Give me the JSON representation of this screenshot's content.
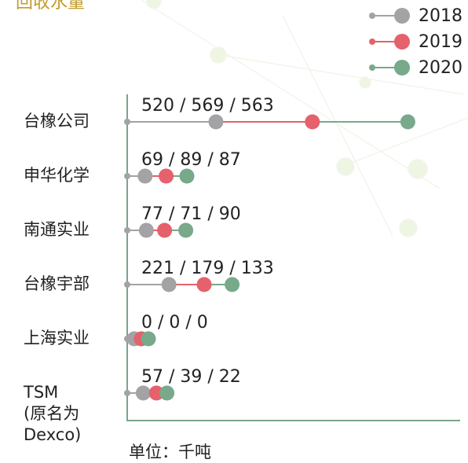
{
  "chart_data": {
    "type": "lollipop",
    "title": "回收水量",
    "categories": [
      "台橡公司",
      "申华化学",
      "南通实业",
      "台橡宇部",
      "上海实业",
      "TSM (原名为 Dexco)"
    ],
    "series": [
      {
        "name": "2018",
        "color": "#a3a3a5",
        "values": [
          520,
          69,
          77,
          221,
          0,
          57
        ]
      },
      {
        "name": "2019",
        "color": "#e5616b",
        "values": [
          569,
          89,
          71,
          179,
          0,
          39
        ]
      },
      {
        "name": "2020",
        "color": "#77a98a",
        "values": [
          563,
          87,
          90,
          133,
          0,
          22
        ]
      }
    ],
    "data_labels": [
      "520 / 569 / 563",
      "69 / 89 / 87",
      "77 / 71 / 90",
      "221 / 179 / 133",
      "0 / 0 / 0",
      "57 / 39 / 22"
    ],
    "unit_note": "单位：千吨",
    "legend": "top-right"
  }
}
